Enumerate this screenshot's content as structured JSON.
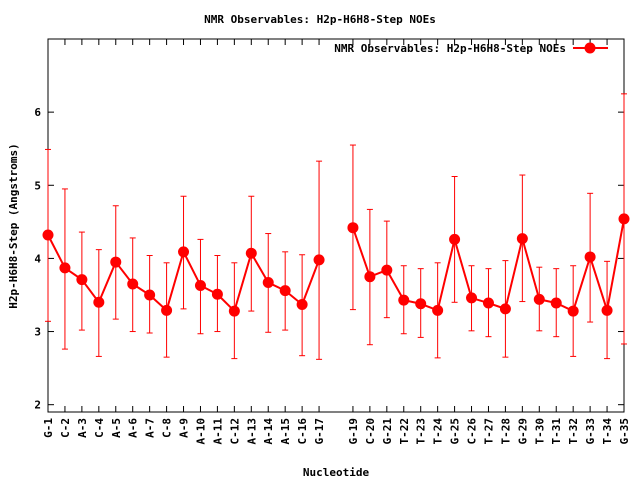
{
  "chart_data": {
    "type": "line",
    "title": "NMR Observables: H2p-H6H8-Step NOEs",
    "xlabel": "Nucleotide",
    "ylabel": "H2p-H6H8-Step (Angstroms)",
    "ylim": [
      1.9,
      7.0
    ],
    "y_ticks": [
      2,
      3,
      4,
      5,
      6
    ],
    "grid": false,
    "legend": "top-right",
    "series": [
      {
        "name": "NMR Observables: H2p-H6H8-Step NOEs",
        "color": "#ff0000",
        "points": [
          {
            "label": "G-1",
            "y": 4.32,
            "low": 3.14,
            "high": 5.49
          },
          {
            "label": "C-2",
            "y": 3.87,
            "low": 2.76,
            "high": 4.95
          },
          {
            "label": "A-3",
            "y": 3.71,
            "low": 3.02,
            "high": 4.36
          },
          {
            "label": "C-4",
            "y": 3.4,
            "low": 2.66,
            "high": 4.12
          },
          {
            "label": "A-5",
            "y": 3.95,
            "low": 3.17,
            "high": 4.72
          },
          {
            "label": "A-6",
            "y": 3.65,
            "low": 3.0,
            "high": 4.28
          },
          {
            "label": "A-7",
            "y": 3.5,
            "low": 2.98,
            "high": 4.04
          },
          {
            "label": "C-8",
            "y": 3.29,
            "low": 2.65,
            "high": 3.94
          },
          {
            "label": "A-9",
            "y": 4.09,
            "low": 3.31,
            "high": 4.85
          },
          {
            "label": "A-10",
            "y": 3.63,
            "low": 2.97,
            "high": 4.26
          },
          {
            "label": "A-11",
            "y": 3.51,
            "low": 3.0,
            "high": 4.04
          },
          {
            "label": "C-12",
            "y": 3.28,
            "low": 2.63,
            "high": 3.94
          },
          {
            "label": "A-13",
            "y": 4.07,
            "low": 3.28,
            "high": 4.85
          },
          {
            "label": "A-14",
            "y": 3.67,
            "low": 2.99,
            "high": 4.34
          },
          {
            "label": "A-15",
            "y": 3.56,
            "low": 3.02,
            "high": 4.09
          },
          {
            "label": "C-16",
            "y": 3.37,
            "low": 2.67,
            "high": 4.05
          },
          {
            "label": "G-17",
            "y": 3.98,
            "low": 2.62,
            "high": 5.33
          },
          {
            "label": "",
            "y": null
          },
          {
            "label": "G-19",
            "y": 4.42,
            "low": 3.3,
            "high": 5.55
          },
          {
            "label": "C-20",
            "y": 3.75,
            "low": 2.82,
            "high": 4.67
          },
          {
            "label": "G-21",
            "y": 3.84,
            "low": 3.19,
            "high": 4.51
          },
          {
            "label": "T-22",
            "y": 3.43,
            "low": 2.97,
            "high": 3.9
          },
          {
            "label": "T-23",
            "y": 3.38,
            "low": 2.92,
            "high": 3.86
          },
          {
            "label": "T-24",
            "y": 3.29,
            "low": 2.64,
            "high": 3.94
          },
          {
            "label": "G-25",
            "y": 4.26,
            "low": 3.4,
            "high": 5.12
          },
          {
            "label": "C-26",
            "y": 3.46,
            "low": 3.01,
            "high": 3.9
          },
          {
            "label": "T-27",
            "y": 3.39,
            "low": 2.93,
            "high": 3.86
          },
          {
            "label": "T-28",
            "y": 3.31,
            "low": 2.65,
            "high": 3.97
          },
          {
            "label": "G-29",
            "y": 4.27,
            "low": 3.41,
            "high": 5.14
          },
          {
            "label": "T-30",
            "y": 3.44,
            "low": 3.01,
            "high": 3.88
          },
          {
            "label": "T-31",
            "y": 3.39,
            "low": 2.93,
            "high": 3.86
          },
          {
            "label": "T-32",
            "y": 3.28,
            "low": 2.66,
            "high": 3.9
          },
          {
            "label": "G-33",
            "y": 4.02,
            "low": 3.13,
            "high": 4.89
          },
          {
            "label": "T-34",
            "y": 3.29,
            "low": 2.63,
            "high": 3.96
          },
          {
            "label": "G-35",
            "y": 4.54,
            "low": 2.83,
            "high": 6.25
          }
        ]
      }
    ]
  }
}
